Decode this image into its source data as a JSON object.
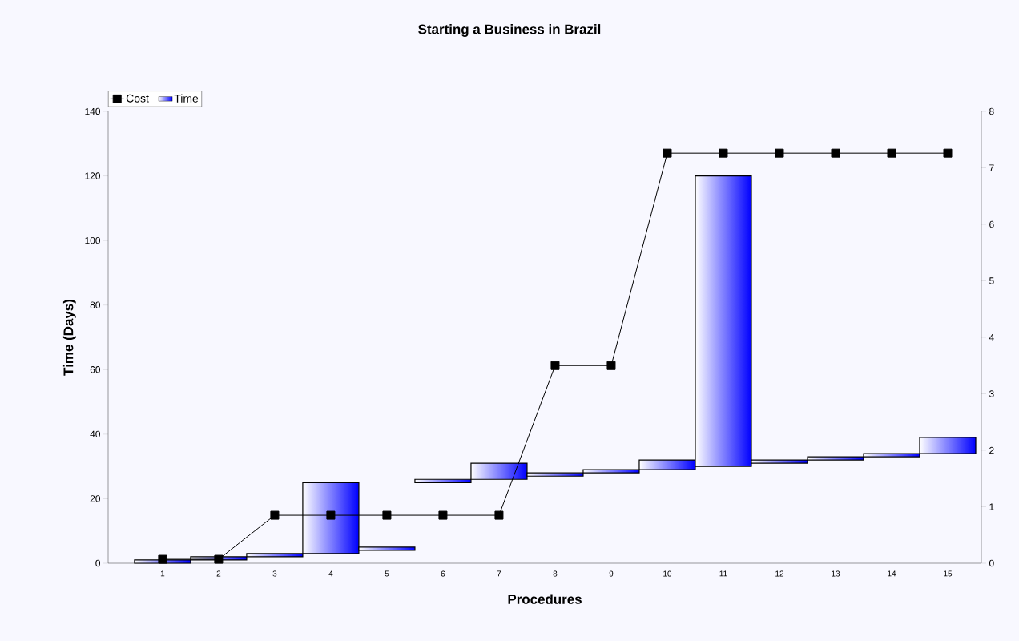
{
  "chart_data": {
    "type": "bar",
    "title": "Starting a Business in Brazil",
    "xlabel": "Procedures",
    "ylabel": "Time (Days)",
    "categories": [
      "1",
      "2",
      "3",
      "4",
      "5",
      "6",
      "7",
      "8",
      "9",
      "10",
      "11",
      "12",
      "13",
      "14",
      "15"
    ],
    "series": [
      {
        "name": "Cost",
        "type": "line",
        "axis": "y2",
        "color": "#000000",
        "marker": "square",
        "values": [
          0.07,
          0.07,
          0.85,
          0.85,
          0.85,
          0.85,
          0.85,
          3.5,
          3.5,
          7.26,
          7.26,
          7.26,
          7.26,
          7.26,
          7.26
        ]
      },
      {
        "name": "Time",
        "color": "#0000ff",
        "base": [
          0,
          1,
          2,
          3,
          4,
          25,
          26,
          27,
          28,
          29,
          30,
          31,
          32,
          33,
          34
        ],
        "values": [
          1,
          1,
          1,
          22,
          1,
          1,
          5,
          1,
          1,
          3,
          90,
          1,
          1,
          1,
          5
        ]
      }
    ],
    "ylim": [
      0,
      140
    ],
    "yticks": [
      0,
      20,
      40,
      60,
      80,
      100,
      120,
      140
    ],
    "y2lim": [
      0,
      8
    ],
    "y2ticks": [
      0,
      1,
      2,
      3,
      4,
      5,
      6,
      7,
      8
    ],
    "legend": "top left"
  }
}
